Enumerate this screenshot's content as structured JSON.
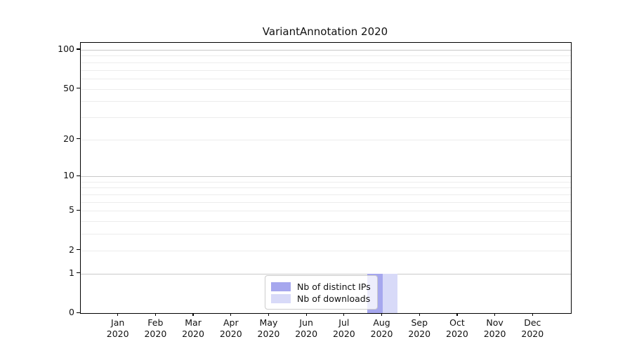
{
  "chart_data": {
    "type": "bar",
    "title": "VariantAnnotation 2020",
    "categories": [
      "Jan",
      "Feb",
      "Mar",
      "Apr",
      "May",
      "Jun",
      "Jul",
      "Aug",
      "Sep",
      "Oct",
      "Nov",
      "Dec"
    ],
    "category_year": "2020",
    "series": [
      {
        "name": "Nb of distinct IPs",
        "color": "#a6a7ee",
        "values": [
          0,
          0,
          0,
          0,
          0,
          0,
          0,
          1,
          0,
          0,
          0,
          0
        ]
      },
      {
        "name": "Nb of downloads",
        "color": "#d8daf8",
        "values": [
          0,
          0,
          0,
          0,
          0,
          0,
          0,
          1,
          0,
          0,
          0,
          0
        ]
      }
    ],
    "y_axis": {
      "scale": "log10(1+x)",
      "ticks": [
        100,
        50,
        20,
        10,
        5,
        2,
        1,
        0
      ],
      "top_value": 113
    },
    "grid": {
      "major_values": [
        1,
        10,
        100
      ],
      "minor_values": [
        2,
        3,
        4,
        5,
        6,
        7,
        8,
        9,
        20,
        30,
        40,
        50,
        60,
        70,
        80,
        90
      ],
      "major_color": "#c9c9c9",
      "minor_color": "#ececec"
    },
    "legend": {
      "position": "lower-center",
      "entries": [
        "Nb of distinct IPs",
        "Nb of downloads"
      ]
    },
    "axis_color": "#000000"
  }
}
